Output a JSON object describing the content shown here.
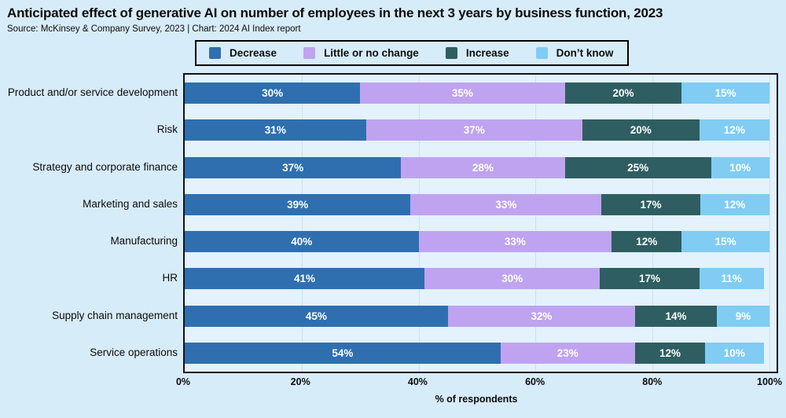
{
  "header": {
    "title": "Anticipated effect of generative AI on number of employees in the next 3 years by business function, 2023",
    "source": "Source: McKinsey & Company Survey, 2023 | Chart: 2024 AI Index report"
  },
  "chart_data": {
    "type": "bar",
    "stacked": true,
    "orientation": "horizontal",
    "title": "Anticipated effect of generative AI on number of employees in the next 3 years by business function, 2023",
    "categories": [
      "Product and/or service development",
      "Risk",
      "Strategy and corporate finance",
      "Marketing and sales",
      "Manufacturing",
      "HR",
      "Supply chain management",
      "Service operations"
    ],
    "series": [
      {
        "name": "Decrease",
        "color": "#2f6fb0",
        "values": [
          30,
          31,
          37,
          39,
          40,
          41,
          45,
          54
        ]
      },
      {
        "name": "Little or no change",
        "color": "#bfa3f0",
        "values": [
          35,
          37,
          28,
          33,
          33,
          30,
          32,
          23
        ]
      },
      {
        "name": "Increase",
        "color": "#2e5e61",
        "values": [
          20,
          20,
          25,
          17,
          12,
          17,
          14,
          12
        ]
      },
      {
        "name": "Don’t know",
        "color": "#80ccf3",
        "values": [
          15,
          12,
          10,
          12,
          15,
          11,
          9,
          10
        ]
      }
    ],
    "xlabel": "% of respondents",
    "x_ticks": [
      "0%",
      "20%",
      "40%",
      "60%",
      "80%",
      "100%"
    ],
    "xlim": [
      0,
      100
    ],
    "value_label_suffix": "%",
    "legend_position": "top",
    "grid": true,
    "colors": {
      "page_background": "#d7ecf9",
      "plot_background": "#e3f2fc",
      "gridline": "#c9e3f3",
      "axis_border": "#131313",
      "bar_label_text": "#ffffff"
    }
  }
}
